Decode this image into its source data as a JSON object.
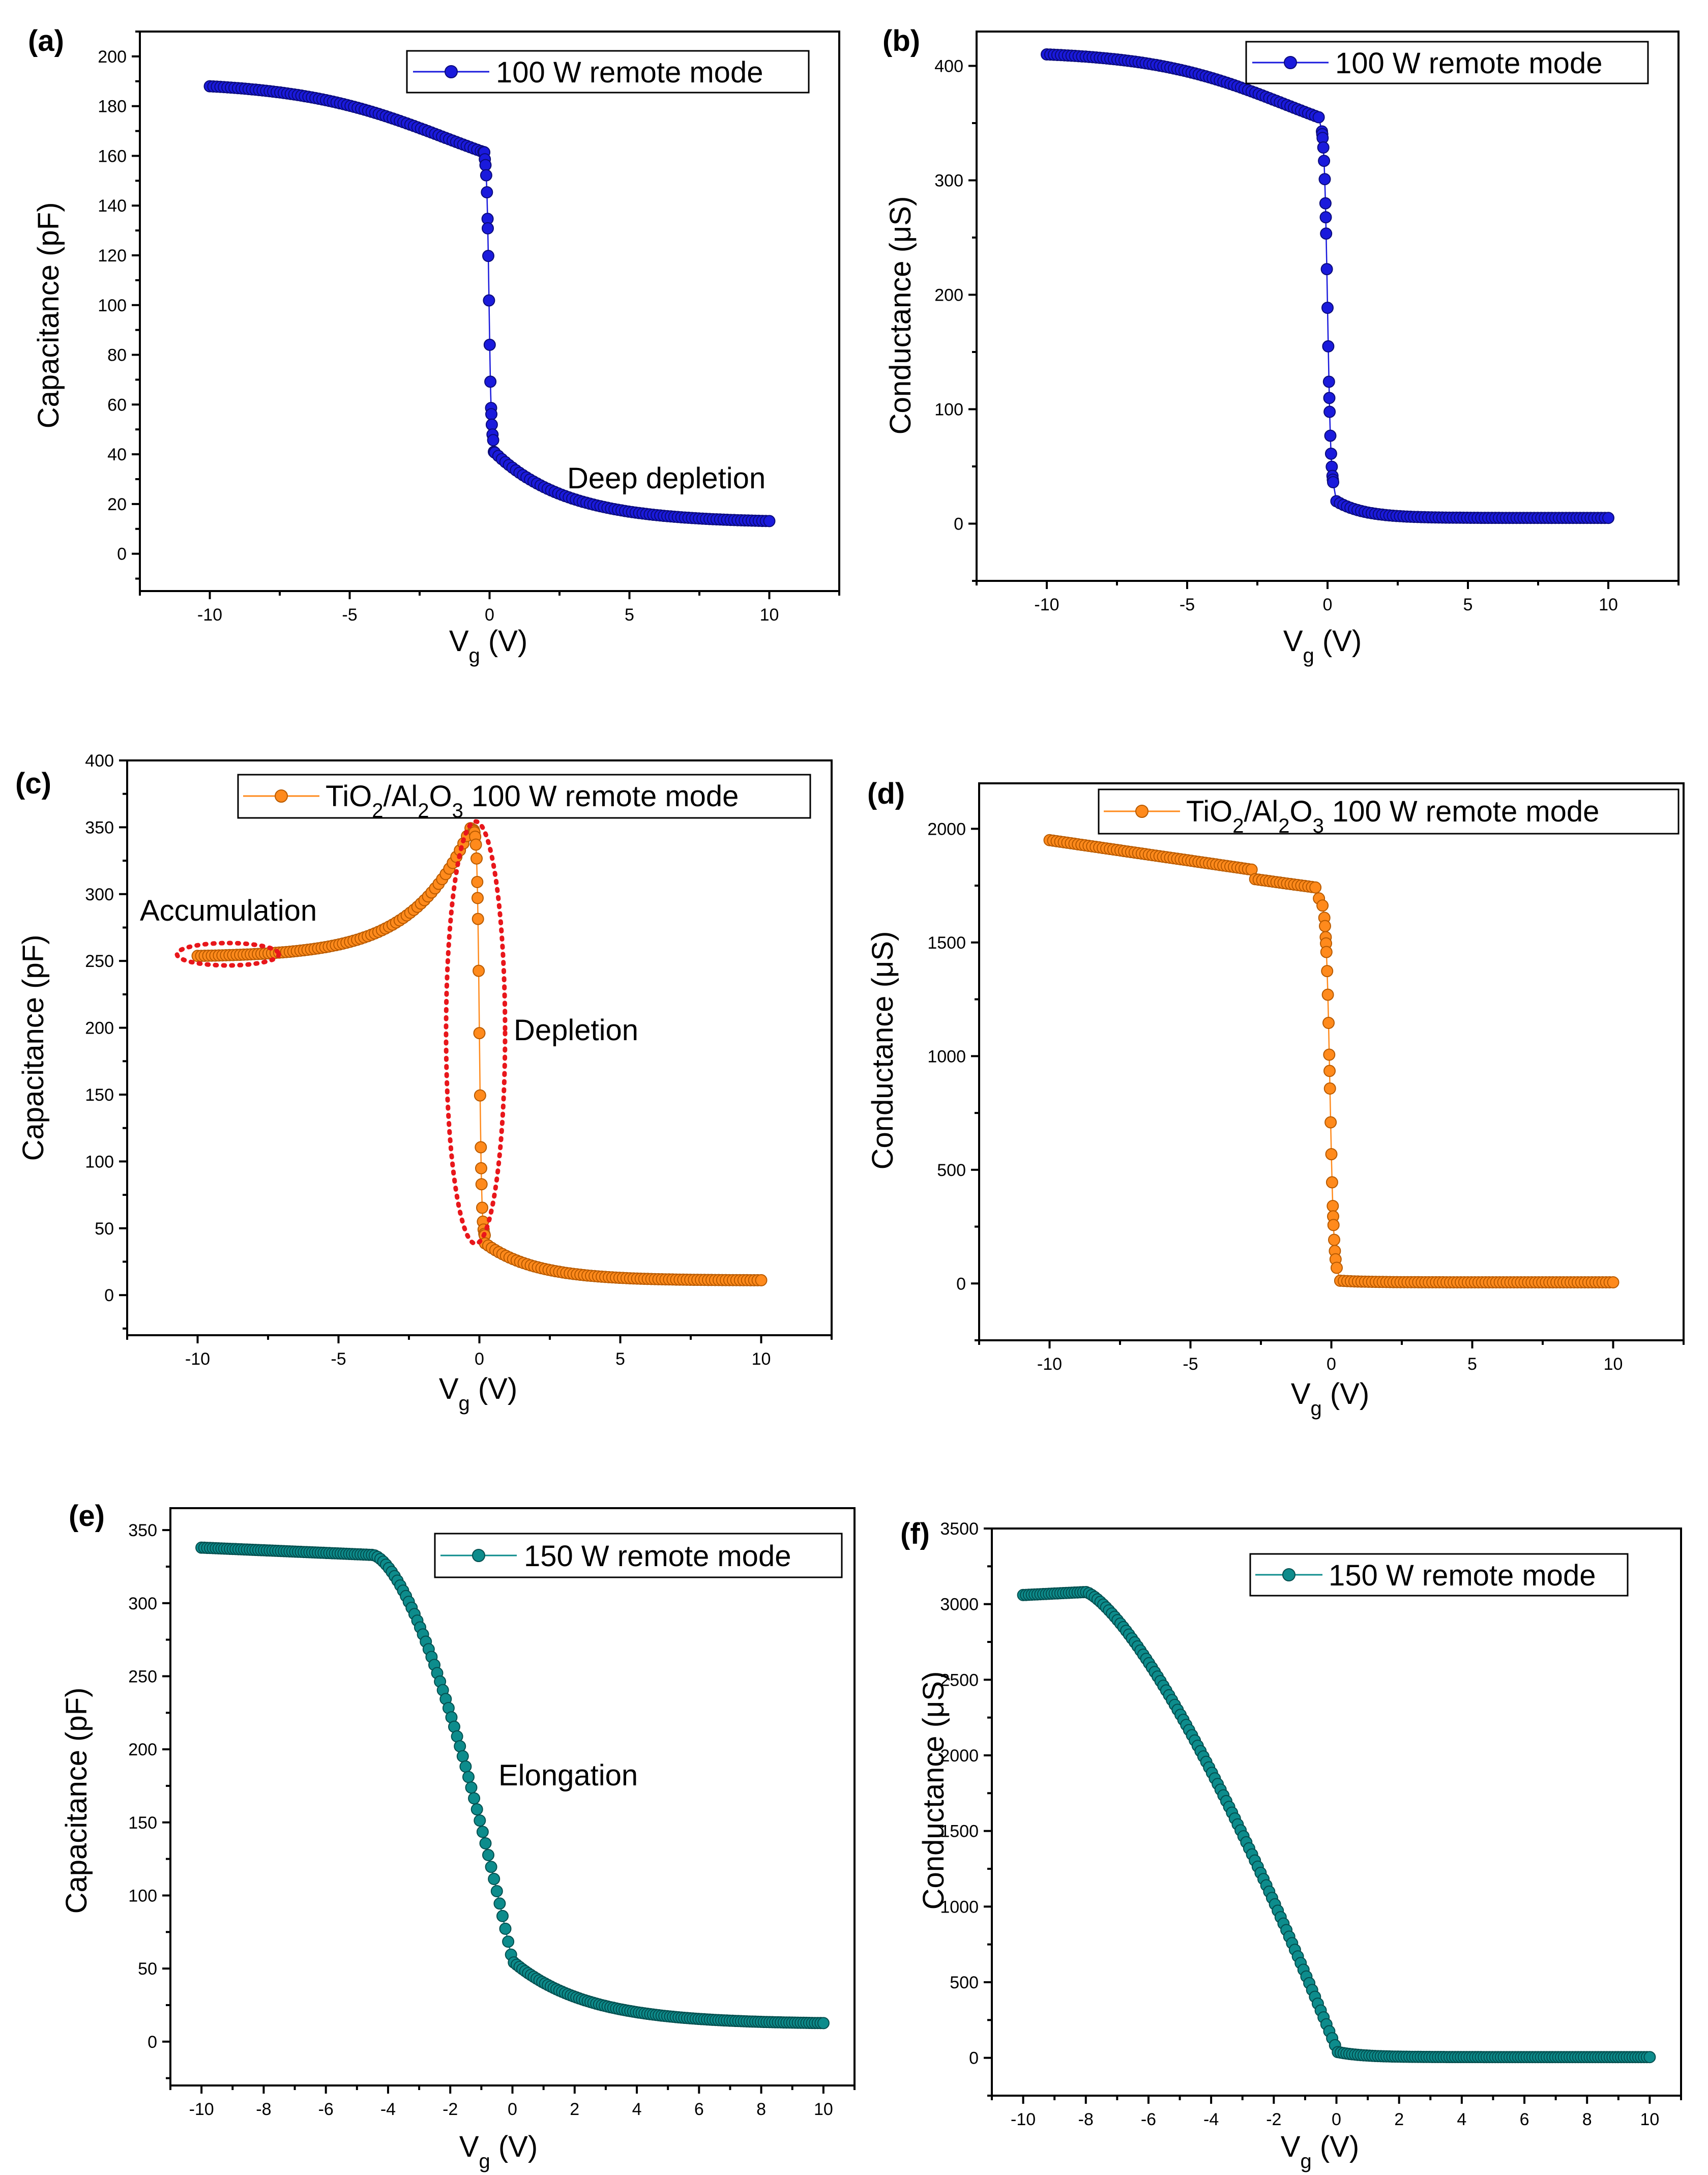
{
  "chart_data": [
    {
      "id": "a",
      "type": "scatter",
      "panel_label": "(a)",
      "xlabel_main": "V",
      "xlabel_sub": "g",
      "xlabel_unit": " (V)",
      "ylabel": "Capacitance (pF)",
      "xlim": [
        -12.5,
        12.5
      ],
      "ylim": [
        -15,
        210
      ],
      "xticks": [
        -10,
        -5,
        0,
        5,
        10
      ],
      "xtick_labels": [
        "-10",
        "-5",
        "0",
        "5",
        "10"
      ],
      "yticks": [
        0,
        20,
        40,
        60,
        80,
        100,
        120,
        140,
        160,
        180,
        200
      ],
      "ytick_labels": [
        "0",
        "20",
        "40",
        "60",
        "80",
        "100",
        "120",
        "140",
        "160",
        "180",
        "200"
      ],
      "legend": {
        "label": "100 W remote mode",
        "position": "top-right"
      },
      "color": "#1a1adc",
      "curve": {
        "kind": "sigmoid",
        "x_start": -10,
        "x_end": 10,
        "n": 160,
        "left": 188,
        "mid": 145,
        "x_mid": -1.6,
        "width": 2.6,
        "right_drop": 1.0,
        "step": 75,
        "x0": -0.02,
        "step_width": 0.04,
        "tail_start": 43,
        "tail_end": 12.5,
        "tail_tau": 2.6
      },
      "annotations": [
        {
          "text": "Deep depletion"
        }
      ]
    },
    {
      "id": "b",
      "type": "scatter",
      "panel_label": "(b)",
      "xlabel_main": "V",
      "xlabel_sub": "g",
      "xlabel_unit": " (V)",
      "ylabel": "Conductance (μS)",
      "xlim": [
        -12.5,
        12.5
      ],
      "ylim": [
        -50,
        430
      ],
      "xticks": [
        -10,
        -5,
        0,
        5,
        10
      ],
      "xtick_labels": [
        "-10",
        "-5",
        "0",
        "5",
        "10"
      ],
      "yticks": [
        0,
        100,
        200,
        300,
        400
      ],
      "ytick_labels": [
        "0",
        "100",
        "200",
        "300",
        "400"
      ],
      "legend": {
        "label": "100 W remote mode",
        "position": "top-right"
      },
      "color": "#1a1adc",
      "curve": {
        "kind": "sigmoid",
        "x_start": -10,
        "x_end": 10,
        "n": 160,
        "left": 410,
        "mid": 320,
        "x_mid": -1.5,
        "width": 2.4,
        "right_drop": 1.0,
        "step": 150,
        "x0": 0.0,
        "step_width": 0.06,
        "tail_start": 25,
        "tail_end": 5,
        "tail_tau": 1.0
      },
      "annotations": []
    },
    {
      "id": "c",
      "type": "scatter",
      "panel_label": "(c)",
      "xlabel_main": "V",
      "xlabel_sub": "g",
      "xlabel_unit": " (V)",
      "ylabel": "Capacitance (pF)",
      "xlim": [
        -12.5,
        12.5
      ],
      "ylim": [
        -30,
        400
      ],
      "xticks": [
        -10,
        -5,
        0,
        5,
        10
      ],
      "xtick_labels": [
        "-10",
        "-5",
        "0",
        "5",
        "10"
      ],
      "yticks": [
        0,
        50,
        100,
        150,
        200,
        250,
        300,
        350,
        400
      ],
      "ytick_labels": [
        "0",
        "50",
        "100",
        "150",
        "200",
        "250",
        "300",
        "350",
        "400"
      ],
      "legend": {
        "parts": [
          "TiO",
          "2",
          "/Al",
          "2",
          "O",
          "3",
          " 100 W remote mode"
        ],
        "position": "top-right"
      },
      "color": "#ff8a1c",
      "curve": {
        "kind": "peak",
        "x_start": -10,
        "x_end": 10,
        "n": 160,
        "base": 253,
        "peak_x": -0.3,
        "peak": 350,
        "tau": 2.0,
        "step": 200,
        "x0": 0.0,
        "step_width": 0.04,
        "tail_start": 42,
        "tail_end": 11,
        "tail_tau": 1.8
      },
      "annotations": [
        {
          "text": "Accumulation"
        },
        {
          "text": "Depletion"
        }
      ]
    },
    {
      "id": "d",
      "type": "scatter",
      "panel_label": "(d)",
      "xlabel_main": "V",
      "xlabel_sub": "g",
      "xlabel_unit": " (V)",
      "ylabel": "Conductance (μS)",
      "xlim": [
        -12.5,
        12.5
      ],
      "ylim": [
        -250,
        2200
      ],
      "xticks": [
        -10,
        -5,
        0,
        5,
        10
      ],
      "xtick_labels": [
        "-10",
        "-5",
        "0",
        "5",
        "10"
      ],
      "yticks": [
        0,
        500,
        1000,
        1500,
        2000
      ],
      "ytick_labels": [
        "0",
        "500",
        "1000",
        "1500",
        "2000"
      ],
      "legend": {
        "parts": [
          "TiO",
          "2",
          "/Al",
          "2",
          "O",
          "3",
          " 100 W remote mode"
        ],
        "position": "top-right"
      },
      "color": "#ff8a1c",
      "curve": {
        "kind": "plateau",
        "x_start": -10,
        "x_end": 10,
        "n": 160,
        "left": 1950,
        "knee_x": -2.8,
        "knee": 1820,
        "shelf": 1780,
        "step": 900,
        "x0": -0.05,
        "step_width": 0.07,
        "tail_start": 15,
        "tail_end": 5,
        "tail_tau": 1.0
      },
      "annotations": []
    },
    {
      "id": "e",
      "type": "scatter",
      "panel_label": "(e)",
      "xlabel_main": "V",
      "xlabel_sub": "g",
      "xlabel_unit": " (V)",
      "ylabel": "Capacitance (pF)",
      "xlim": [
        -11,
        11
      ],
      "ylim": [
        -30,
        365
      ],
      "xticks": [
        -10,
        -8,
        -6,
        -4,
        -2,
        0,
        2,
        4,
        6,
        8,
        10
      ],
      "xtick_labels": [
        "-10",
        "-8",
        "-6",
        "-4",
        "-2",
        "0",
        "2",
        "4",
        "6",
        "8",
        "10"
      ],
      "yticks": [
        0,
        50,
        100,
        150,
        200,
        250,
        300,
        350
      ],
      "ytick_labels": [
        "0",
        "50",
        "100",
        "150",
        "200",
        "250",
        "300",
        "350"
      ],
      "legend": {
        "label": "150 W remote mode",
        "position": "top-right"
      },
      "color": "#0d8c8c",
      "curve": {
        "kind": "broad",
        "x_start": -10,
        "x_end": 10,
        "n": 220,
        "left": 338,
        "flat": 333,
        "x_flat": -4.5,
        "x_zero": 0.0,
        "edge": 55,
        "power": 1.6,
        "tail_start": 55,
        "tail_end": 12,
        "tail_tau": 2.4
      },
      "annotations": [
        {
          "text": "Elongation"
        }
      ]
    },
    {
      "id": "f",
      "type": "scatter",
      "panel_label": "(f)",
      "xlabel_main": "V",
      "xlabel_sub": "g",
      "xlabel_unit": " (V)",
      "ylabel": "Conductance (μS)",
      "xlim": [
        -11,
        11
      ],
      "ylim": [
        -250,
        3500
      ],
      "xticks": [
        -10,
        -8,
        -6,
        -4,
        -2,
        0,
        2,
        4,
        6,
        8,
        10
      ],
      "xtick_labels": [
        "-10",
        "-8",
        "-6",
        "-4",
        "-2",
        "0",
        "2",
        "4",
        "6",
        "8",
        "10"
      ],
      "yticks": [
        0,
        500,
        1000,
        1500,
        2000,
        2500,
        3000,
        3500
      ],
      "ytick_labels": [
        "0",
        "500",
        "1000",
        "1500",
        "2000",
        "2500",
        "3000",
        "3500"
      ],
      "legend": {
        "label": "150 W remote mode",
        "position": "top-right"
      },
      "color": "#0d8c8c",
      "curve": {
        "kind": "broad",
        "x_start": -10,
        "x_end": 10,
        "n": 220,
        "left": 3060,
        "flat": 3080,
        "x_flat": -8.0,
        "x_zero": 0.0,
        "edge": 60,
        "power": 1.35,
        "tail_start": 40,
        "tail_end": 5,
        "tail_tau": 0.8
      },
      "annotations": []
    }
  ]
}
